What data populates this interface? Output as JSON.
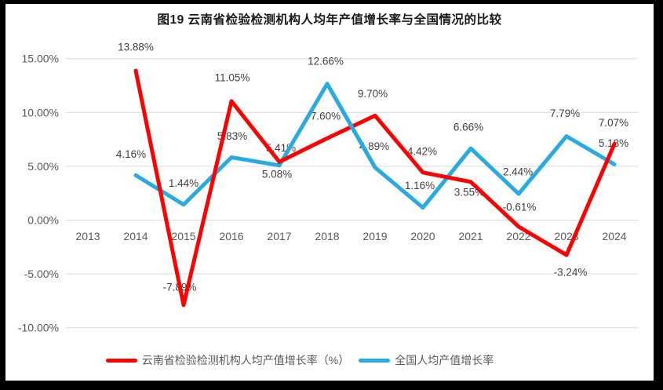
{
  "chart_data": {
    "type": "line",
    "title": "图19  云南省检验检测机构人均年产值增长率与全国情况的比较",
    "xlabel": "",
    "ylabel": "",
    "x_categories": [
      "2013",
      "2014",
      "2015",
      "2016",
      "2017",
      "2018",
      "2019",
      "2020",
      "2021",
      "2022",
      "2023",
      "2024"
    ],
    "y_axis": {
      "ticks": [
        "15.00%",
        "10.00%",
        "5.00%",
        "0.00%",
        "-5.00%",
        "-10.00%"
      ],
      "values": [
        15,
        10,
        5,
        0,
        -5,
        -10
      ]
    },
    "ylim": [
      -10,
      15
    ],
    "grid": "horizontal",
    "grid_color": "#D9D9D9",
    "legend_position": "bottom",
    "series": [
      {
        "name": "云南省检验检测机构人均产值增长率（%）",
        "color": "#FE0000",
        "start_index": 1,
        "values": [
          13.88,
          -7.89,
          11.05,
          5.41,
          7.6,
          9.7,
          4.42,
          3.55,
          -0.61,
          -3.24,
          7.07
        ],
        "labels": [
          "13.88%",
          "-7.89%",
          "11.05%",
          "5.41%",
          "7.60%",
          "9.70%",
          "4.42%",
          "3.55%",
          "-0.61%",
          "-3.24%",
          "7.07%"
        ],
        "label_offsets": [
          [
            0,
            -30
          ],
          [
            -5,
            -23
          ],
          [
            1,
            -30
          ],
          [
            2,
            -18
          ],
          [
            -2,
            -28
          ],
          [
            -3,
            -28
          ],
          [
            -1,
            -27
          ],
          [
            -2,
            13
          ],
          [
            1,
            -25
          ],
          [
            5,
            22
          ],
          [
            -1,
            -27
          ]
        ]
      },
      {
        "name": "全国人均产值增长率",
        "color": "#29ABE2",
        "start_index": 1,
        "values": [
          4.16,
          1.44,
          5.83,
          5.08,
          12.66,
          4.89,
          1.16,
          6.66,
          2.44,
          7.79,
          5.18
        ],
        "labels": [
          "4.16%",
          "1.44%",
          "5.83%",
          "5.08%",
          "12.66%",
          "4.89%",
          "1.16%",
          "6.66%",
          "2.44%",
          "7.79%",
          "5.18%"
        ],
        "label_offsets": [
          [
            -6,
            -27
          ],
          [
            0,
            -27
          ],
          [
            1,
            -27
          ],
          [
            -3,
            11
          ],
          [
            -2,
            -29
          ],
          [
            -1,
            -27
          ],
          [
            -4,
            -28
          ],
          [
            -3,
            -27
          ],
          [
            -1,
            -28
          ],
          [
            -2,
            -29
          ],
          [
            -1,
            -27
          ]
        ]
      }
    ],
    "crossing_overlays": [
      {
        "series": 1,
        "from_index": 4,
        "to_index": 5
      }
    ]
  }
}
